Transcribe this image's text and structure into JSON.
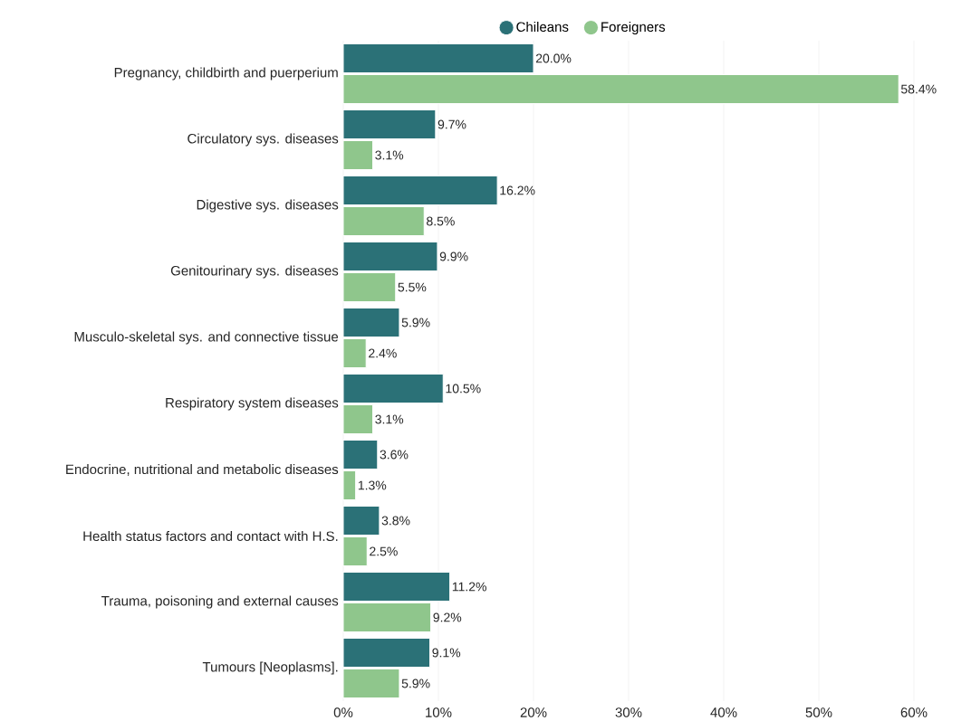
{
  "chart_data": {
    "type": "bar",
    "orientation": "horizontal",
    "categories": [
      "Pregnancy, childbirth and puerperium",
      "Circulatory sys. diseases",
      "Digestive sys. diseases",
      "Genitourinary sys. diseases",
      "Musculo-skeletal sys. and connective tissue",
      "Respiratory system diseases",
      "Endocrine, nutritional and metabolic diseases",
      "Health status factors and contact with H.S.",
      "Trauma, poisoning and external causes",
      "Tumours [Neoplasms]."
    ],
    "series": [
      {
        "name": "Chileans",
        "color": "#2b7177",
        "values": [
          20.0,
          9.7,
          16.2,
          9.9,
          5.9,
          10.5,
          3.6,
          3.8,
          11.2,
          9.1
        ],
        "value_labels": [
          "20.0%",
          "9.7%",
          "16.2%",
          "9.9%",
          "5.9%",
          "10.5%",
          "3.6%",
          "3.8%",
          "11.2%",
          "9.1%"
        ]
      },
      {
        "name": "Foreigners",
        "color": "#8fc68c",
        "values": [
          58.4,
          3.1,
          8.5,
          5.5,
          2.4,
          3.1,
          1.3,
          2.5,
          9.2,
          5.9
        ],
        "value_labels": [
          "58.4%",
          "3.1%",
          "8.5%",
          "5.5%",
          "2.4%",
          "3.1%",
          "1.3%",
          "2.5%",
          "9.2%",
          "5.9%"
        ]
      }
    ],
    "xlim": [
      0,
      60
    ],
    "xticks": [
      {
        "value": 0,
        "label": "0%"
      },
      {
        "value": 10,
        "label": "10%"
      },
      {
        "value": 20,
        "label": "20%"
      },
      {
        "value": 30,
        "label": "30%"
      },
      {
        "value": 40,
        "label": "40%"
      },
      {
        "value": 50,
        "label": "50%"
      },
      {
        "value": 60,
        "label": "60%"
      }
    ],
    "grid": "x",
    "legend": "top"
  }
}
